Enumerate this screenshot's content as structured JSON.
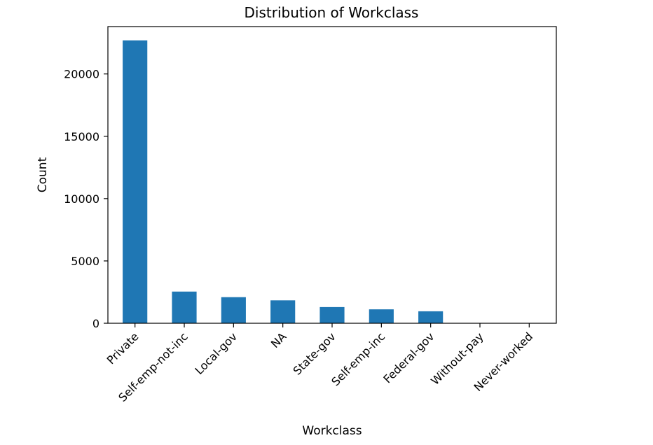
{
  "chart_data": {
    "type": "bar",
    "title": "Distribution of Workclass",
    "xlabel": "Workclass",
    "ylabel": "Count",
    "categories": [
      "Private",
      "Self-emp-not-inc",
      "Local-gov",
      "NA",
      "State-gov",
      "Self-emp-inc",
      "Federal-gov",
      "Without-pay",
      "Never-worked"
    ],
    "values": [
      22696,
      2541,
      2093,
      1836,
      1298,
      1116,
      960,
      14,
      7
    ],
    "ylim": [
      0,
      23800
    ],
    "yticks": [
      0,
      5000,
      10000,
      15000,
      20000
    ],
    "grid": false,
    "bar_color": "#1f77b4"
  }
}
